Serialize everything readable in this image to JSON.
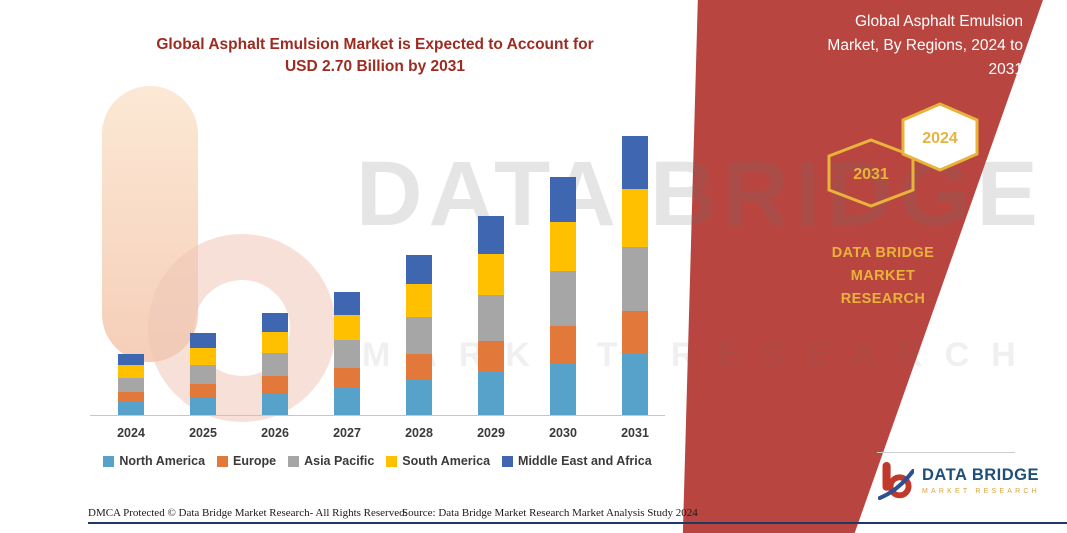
{
  "colors": {
    "ribbon_red": "#B8453F",
    "title_red": "#9C2B21",
    "gold": "#E8B33B",
    "logo_navy": "#1F4E79",
    "logo_gold": "#D9A437",
    "bottom_line_navy": "#1F3864"
  },
  "header": {
    "title_lines": [
      "Global Asphalt Emulsion Market is Expected to Account for",
      "USD 2.70 Billion by 2031"
    ]
  },
  "banner": {
    "title_lines": [
      "Global Asphalt Emulsion",
      "Market, By Regions, 2024 to",
      "2031"
    ],
    "hex_back_label": "2031",
    "hex_front_label": "2024",
    "brand_lines": [
      "DATA BRIDGE MARKET",
      "RESEARCH"
    ]
  },
  "watermark": {
    "main": "DATA BRIDGE",
    "sub": "MARKET RESEARCH"
  },
  "footer": {
    "dmca": "DMCA Protected © Data Bridge Market Research-  All Rights Reserved.",
    "source": "Source: Data Bridge Market Research  Market Analysis Study 2024"
  },
  "logo": {
    "title": "DATA BRIDGE",
    "subtitle": "MARKET RESEARCH"
  },
  "chart_data": {
    "type": "bar",
    "stacked": true,
    "title": "Global Asphalt Emulsion Market is Expected to Account for USD 2.70 Billion by 2031",
    "categories": [
      "2024",
      "2025",
      "2026",
      "2027",
      "2028",
      "2029",
      "2030",
      "2031"
    ],
    "series": [
      {
        "name": "North America",
        "color": "#56A2CB",
        "values": [
          0.13,
          0.17,
          0.21,
          0.26,
          0.34,
          0.42,
          0.5,
          0.59
        ]
      },
      {
        "name": "Europe",
        "color": "#E2793A",
        "values": [
          0.1,
          0.13,
          0.16,
          0.19,
          0.25,
          0.3,
          0.36,
          0.42
        ]
      },
      {
        "name": "Asia Pacific",
        "color": "#A6A6A6",
        "values": [
          0.14,
          0.18,
          0.22,
          0.27,
          0.36,
          0.45,
          0.53,
          0.62
        ]
      },
      {
        "name": "South America",
        "color": "#FFC000",
        "values": [
          0.13,
          0.16,
          0.2,
          0.24,
          0.32,
          0.4,
          0.47,
          0.56
        ]
      },
      {
        "name": "Middle East and Africa",
        "color": "#3F66B0",
        "values": [
          0.11,
          0.15,
          0.18,
          0.22,
          0.28,
          0.37,
          0.44,
          0.51
        ]
      }
    ],
    "totals": [
      0.61,
      0.79,
      0.97,
      1.18,
      1.55,
      1.94,
      2.3,
      2.7
    ],
    "value_unit": "USD Billion",
    "note": "Segment values estimated from bar heights; only the 2031 total (USD 2.70 Billion) is stated on the image.",
    "y_axis": {
      "visible": false,
      "min": 0,
      "max": 2.8
    },
    "grid": false,
    "legend_position": "bottom"
  }
}
